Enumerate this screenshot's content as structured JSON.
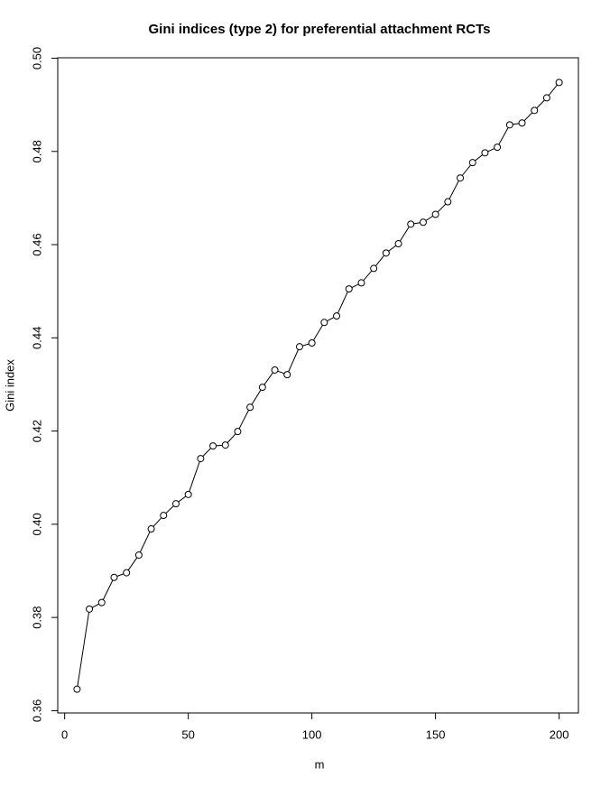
{
  "chart_data": {
    "type": "line",
    "title": "Gini indices (type 2) for preferential attachment RCTs",
    "x_label": "m",
    "y_label": "Gini index",
    "x": [
      5,
      10,
      15,
      20,
      25,
      30,
      35,
      40,
      45,
      50,
      55,
      60,
      65,
      70,
      75,
      80,
      85,
      90,
      95,
      100,
      105,
      110,
      115,
      120,
      125,
      130,
      135,
      140,
      145,
      150,
      155,
      160,
      165,
      170,
      175,
      180,
      185,
      190,
      195,
      200
    ],
    "series": [
      {
        "color": "#000000",
        "values": [
          0.3646,
          0.3818,
          0.3832,
          0.3886,
          0.3896,
          0.3934,
          0.399,
          0.4019,
          0.4044,
          0.4064,
          0.4141,
          0.4168,
          0.417,
          0.4199,
          0.4251,
          0.4294,
          0.4331,
          0.4321,
          0.4381,
          0.4389,
          0.4433,
          0.4447,
          0.4505,
          0.4518,
          0.4549,
          0.4582,
          0.4602,
          0.4644,
          0.4648,
          0.4665,
          0.4692,
          0.4743,
          0.4776,
          0.4797,
          0.4809,
          0.4857,
          0.4861,
          0.4888,
          0.4915,
          0.4948
        ]
      }
    ],
    "xlim": [
      -2.8,
      207.8
    ],
    "ylim": [
      0.3595,
      0.5001
    ],
    "xticks": [
      0,
      50,
      100,
      150,
      200
    ],
    "yticks": [
      0.36,
      0.38,
      {
        "value": 0.4,
        "label": "0.40"
      },
      0.42,
      0.44,
      0.46,
      0.48,
      {
        "value": 0.5,
        "label": "0.50"
      }
    ],
    "markers": true,
    "grid": false
  }
}
